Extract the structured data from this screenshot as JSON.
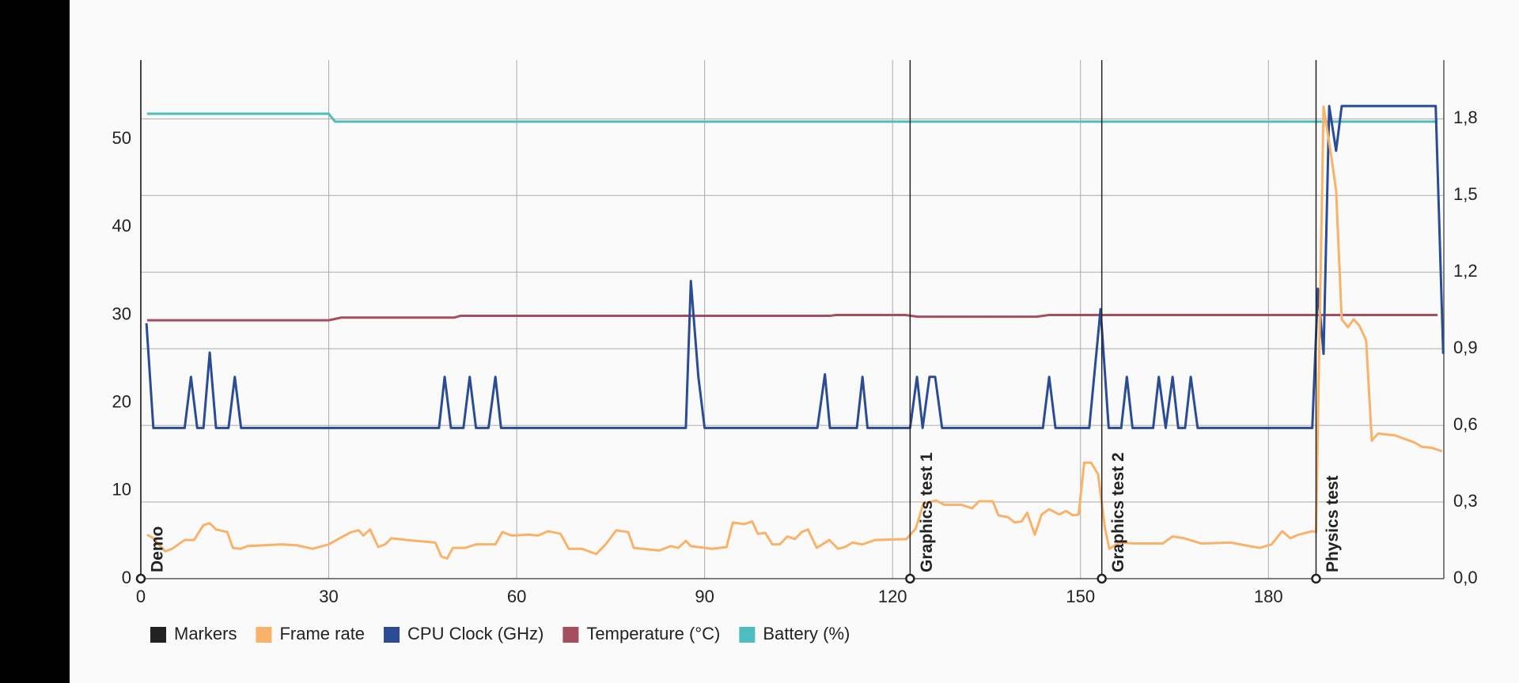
{
  "chart_data": {
    "type": "line",
    "xlim": [
      0,
      208
    ],
    "xticks": [
      0,
      30,
      60,
      90,
      120,
      150,
      180
    ],
    "ylim": [
      0,
      59
    ],
    "yticks": [
      0,
      10,
      20,
      30,
      40,
      50
    ],
    "y2lim": [
      0,
      2.03
    ],
    "y2ticks": [
      {
        "value": 0,
        "label": "0,0"
      },
      {
        "value": 0.3,
        "label": "0,3"
      },
      {
        "value": 0.6,
        "label": "0,6"
      },
      {
        "value": 0.9,
        "label": "0,9"
      },
      {
        "value": 1.2,
        "label": "1,2"
      },
      {
        "value": 1.5,
        "label": "1,5"
      },
      {
        "value": 1.8,
        "label": "1,8"
      }
    ],
    "grid": true,
    "legend": "bottom",
    "markers": {
      "name": "Markers",
      "color": "#222222",
      "x": [
        0,
        122.8,
        153.4,
        187.6
      ],
      "labels": [
        "Demo",
        "Graphics test 1",
        "Graphics test 2",
        "Physics test"
      ]
    },
    "series": [
      {
        "name": "Frame rate",
        "color": "#f8b26a",
        "x": [
          1,
          2,
          3.9,
          5,
          7,
          8.5,
          10,
          11,
          12,
          13.8,
          14.7,
          15.9,
          17,
          22.4,
          24.9,
          27.4,
          30,
          32,
          33.6,
          34.8,
          35.5,
          36.6,
          37.9,
          39,
          40,
          42.5,
          43.8,
          45.6,
          47,
          48,
          48.9,
          49.8,
          51.8,
          53.5,
          56.6,
          57.7,
          59.2,
          61.9,
          63.4,
          65,
          67,
          68.3,
          70.4,
          72.7,
          74.2,
          75.9,
          77.8,
          78.7,
          82.7,
          84.6,
          85.8,
          87,
          87.8,
          91.2,
          93.5,
          94.5,
          96.3,
          97.6,
          98.5,
          99.7,
          100.8,
          102,
          103.2,
          104.4,
          105.5,
          106.5,
          107.9,
          109.9,
          111.3,
          112.4,
          113.6,
          115.2,
          117.2,
          122.2,
          123.7,
          124.9,
          126.9,
          128.3,
          131,
          132.7,
          133.8,
          136,
          136.9,
          138.4,
          139.5,
          140.6,
          141.5,
          142.7,
          143.8,
          145,
          146.6,
          147.7,
          148.8,
          149.7,
          150.6,
          151.7,
          152.8,
          153.9,
          154.6,
          156.2,
          158.8,
          163.1,
          164.7,
          166.5,
          169.3,
          174,
          177,
          178.6,
          180.5,
          182.2,
          183.5,
          184.8,
          187,
          187.6,
          188.8,
          190,
          190.8,
          191.7,
          192.7,
          193.6,
          194.5,
          195.6,
          196.5,
          197.5,
          200.2,
          203.3,
          204.5,
          206,
          207.7
        ],
        "values": [
          5.0,
          4.6,
          3.1,
          3.4,
          4.4,
          4.4,
          6.1,
          6.3,
          5.6,
          5.3,
          3.5,
          3.4,
          3.7,
          3.9,
          3.8,
          3.4,
          3.9,
          4.7,
          5.3,
          5.5,
          4.9,
          5.6,
          3.6,
          3.9,
          4.6,
          4.4,
          4.3,
          4.2,
          4.1,
          2.5,
          2.3,
          3.5,
          3.5,
          3.9,
          3.9,
          5.3,
          4.9,
          5.0,
          4.9,
          5.4,
          5.1,
          3.4,
          3.4,
          2.8,
          3.9,
          5.5,
          5.3,
          3.5,
          3.2,
          3.7,
          3.5,
          4.3,
          3.7,
          3.4,
          3.6,
          6.4,
          6.2,
          6.5,
          5.1,
          5.2,
          3.9,
          3.9,
          4.8,
          4.5,
          5.3,
          5.6,
          3.5,
          4.4,
          3.4,
          3.6,
          4.1,
          3.9,
          4.4,
          4.5,
          5.7,
          8.5,
          8.9,
          8.4,
          8.4,
          8.0,
          8.8,
          8.8,
          7.2,
          7.0,
          6.4,
          6.5,
          7.5,
          5.0,
          7.3,
          7.9,
          7.3,
          7.7,
          7.2,
          7.3,
          13.2,
          13.2,
          11.9,
          5.8,
          3.4,
          4.1,
          4.0,
          4.0,
          4.8,
          4.6,
          4.0,
          4.1,
          3.7,
          3.5,
          3.9,
          5.4,
          4.6,
          5.0,
          5.4,
          5.3,
          53.7,
          48.2,
          44.2,
          29.5,
          28.6,
          29.5,
          28.8,
          27.1,
          15.7,
          16.5,
          16.3,
          15.5,
          15.0,
          14.9,
          14.5
        ]
      },
      {
        "name": "CPU Clock (GHz)",
        "color": "#2b4c94",
        "axis": "y2",
        "x": [
          0.9,
          2,
          7,
          8,
          9,
          10,
          11,
          12,
          14,
          15,
          16,
          47.6,
          48.5,
          49.5,
          51.5,
          52.5,
          53.5,
          55.5,
          56.6,
          57.5,
          87,
          87.8,
          89,
          90,
          108,
          109.2,
          110,
          114.3,
          115.2,
          116,
          122.8,
          123.9,
          124.8,
          125.9,
          126.8,
          127.9,
          144,
          145,
          146,
          151.4,
          153.2,
          154.5,
          156.5,
          157.4,
          158.3,
          161.6,
          162.5,
          163.6,
          164.7,
          165.6,
          166.7,
          167.6,
          168.7,
          187,
          187.9,
          188.8,
          189.7,
          190.8,
          191.7,
          206.7,
          207.9
        ],
        "values": [
          1.0,
          0.59,
          0.59,
          0.79,
          0.59,
          0.59,
          0.885,
          0.59,
          0.59,
          0.79,
          0.59,
          0.59,
          0.79,
          0.59,
          0.59,
          0.79,
          0.59,
          0.59,
          0.79,
          0.59,
          0.59,
          1.165,
          0.79,
          0.59,
          0.59,
          0.8,
          0.59,
          0.59,
          0.79,
          0.59,
          0.59,
          0.79,
          0.59,
          0.79,
          0.79,
          0.59,
          0.59,
          0.79,
          0.59,
          0.59,
          1.055,
          0.59,
          0.59,
          0.79,
          0.59,
          0.59,
          0.79,
          0.59,
          0.79,
          0.59,
          0.59,
          0.79,
          0.59,
          0.59,
          1.135,
          0.88,
          1.85,
          1.675,
          1.85,
          1.85,
          0.88
        ]
      },
      {
        "name": "Temperature (°C)",
        "color": "#a34f60",
        "x": [
          1,
          30,
          32,
          50,
          51,
          110,
          111,
          122,
          124,
          143,
          145,
          207
        ],
        "values": [
          29.4,
          29.4,
          29.7,
          29.7,
          29.9,
          29.9,
          30.0,
          30.0,
          29.8,
          29.8,
          30.0,
          30.0
        ]
      },
      {
        "name": "Battery (%)",
        "color": "#4dbdbd",
        "x": [
          1,
          30,
          31,
          207
        ],
        "values": [
          52.9,
          52.9,
          52.0,
          52.0
        ]
      }
    ]
  }
}
